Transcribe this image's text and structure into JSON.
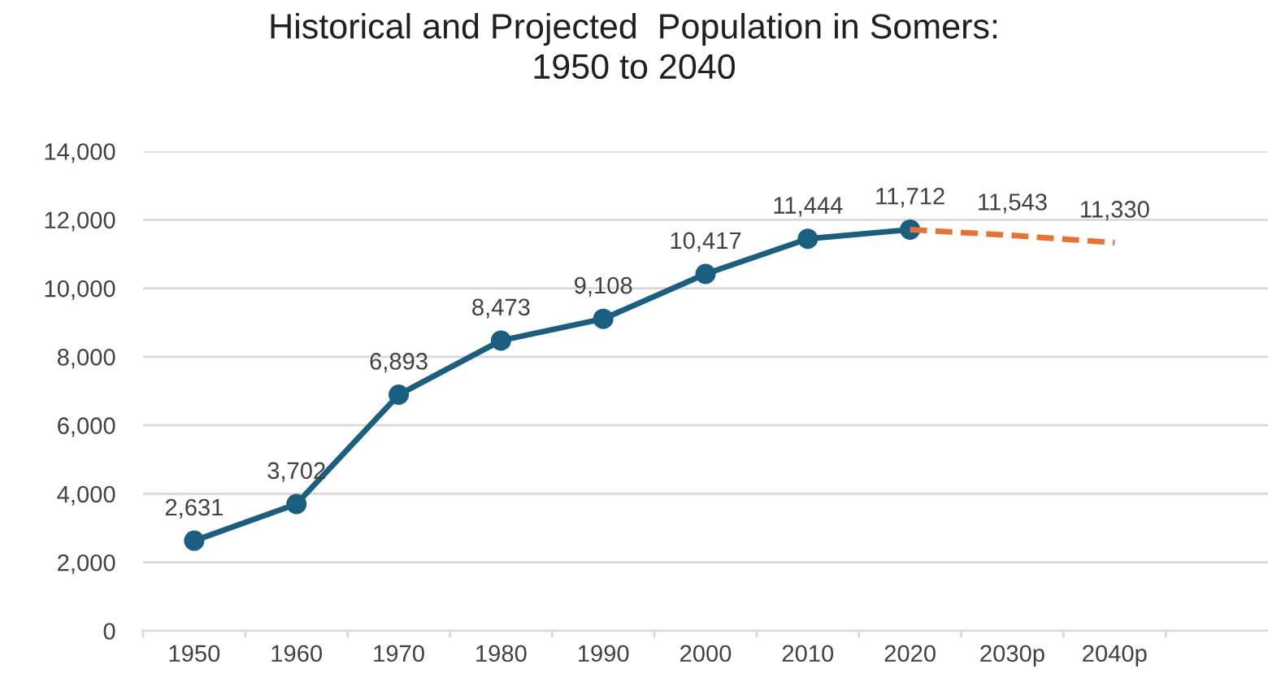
{
  "chart_data": {
    "type": "line",
    "title": "Historical and Projected  Population in Somers:\n1950 to 2040",
    "categories": [
      "1950",
      "1960",
      "1970",
      "1980",
      "1990",
      "2000",
      "2010",
      "2020",
      "2030p",
      "2040p"
    ],
    "series": [
      {
        "color": "#1a5e80",
        "marker": "circle",
        "line_style": "solid",
        "values": [
          2631,
          3702,
          6893,
          8473,
          9108,
          10417,
          11444,
          11712,
          null,
          null
        ],
        "value_labels": [
          "2,631",
          "3,702",
          "6,893",
          "8,473",
          "9,108",
          "10,417",
          "11,444",
          "11,712",
          null,
          null
        ]
      },
      {
        "color": "#e97132",
        "marker": "none",
        "line_style": "dashed",
        "values": [
          null,
          null,
          null,
          null,
          null,
          null,
          null,
          11712,
          11543,
          11330
        ],
        "value_labels": [
          null,
          null,
          null,
          null,
          null,
          null,
          null,
          null,
          "11,543",
          "11,330"
        ]
      }
    ],
    "ylim": [
      0,
      14000
    ],
    "yticks": [
      0,
      {
        "value": 2000,
        "label": "2,000"
      },
      {
        "value": 4000,
        "label": "4,000"
      },
      {
        "value": 6000,
        "label": "6,000"
      },
      {
        "value": 8000,
        "label": "8,000"
      },
      {
        "value": 10000,
        "label": "10,000"
      },
      {
        "value": 12000,
        "label": "12,000"
      },
      {
        "value": 14000,
        "label": "14,000"
      }
    ],
    "grid": "y",
    "legend": false
  }
}
